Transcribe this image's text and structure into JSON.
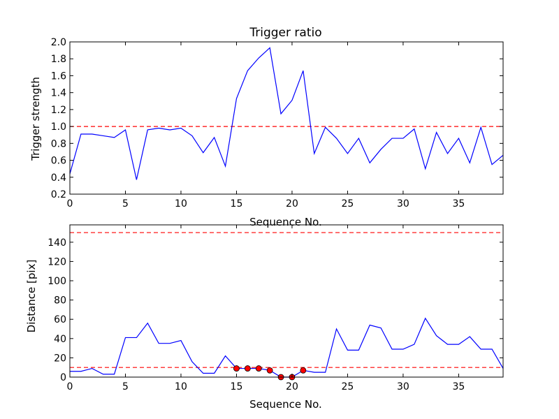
{
  "chart_data": [
    {
      "type": "line",
      "title": "Trigger ratio",
      "xlabel": "Sequence No.",
      "ylabel": "Trigger strength",
      "xlim": [
        0,
        39
      ],
      "ylim": [
        0.2,
        2.0
      ],
      "xticks": [
        0,
        5,
        10,
        15,
        20,
        25,
        30,
        35
      ],
      "yticks": [
        0.2,
        0.4,
        0.6,
        0.8,
        1.0,
        1.2,
        1.4,
        1.6,
        1.8,
        2.0
      ],
      "xtick_labels": [
        "0",
        "5",
        "10",
        "15",
        "20",
        "25",
        "30",
        "35"
      ],
      "ytick_labels": [
        "0.2",
        "0.4",
        "0.6",
        "0.8",
        "1.0",
        "1.2",
        "1.4",
        "1.6",
        "1.8",
        "2.0"
      ],
      "grid": false,
      "series": [
        {
          "color": "#0000ff",
          "x": [
            0,
            1,
            2,
            3,
            4,
            5,
            6,
            7,
            8,
            9,
            10,
            11,
            12,
            13,
            14,
            15,
            16,
            17,
            18,
            19,
            20,
            21,
            22,
            23,
            24,
            25,
            26,
            27,
            28,
            29,
            30,
            31,
            32,
            33,
            34,
            35,
            36,
            37,
            38,
            39
          ],
          "values": [
            0.44,
            0.91,
            0.91,
            0.89,
            0.87,
            0.96,
            0.37,
            0.96,
            0.98,
            0.96,
            0.98,
            0.89,
            0.69,
            0.87,
            0.53,
            1.33,
            1.66,
            1.81,
            1.93,
            1.15,
            1.31,
            1.66,
            0.68,
            0.99,
            0.86,
            0.68,
            0.86,
            0.57,
            0.73,
            0.86,
            0.86,
            0.97,
            0.5,
            0.93,
            0.68,
            0.86,
            0.57,
            0.99,
            0.55,
            0.66
          ]
        }
      ],
      "reference_lines": [
        {
          "y": 1.0,
          "color": "#ff0000",
          "style": "dashed"
        }
      ]
    },
    {
      "type": "line",
      "title": "",
      "xlabel": "Sequence No.",
      "ylabel": "Distance [pix]",
      "xlim": [
        0,
        39
      ],
      "ylim": [
        0,
        158
      ],
      "xticks": [
        0,
        5,
        10,
        15,
        20,
        25,
        30,
        35
      ],
      "yticks": [
        0,
        20,
        40,
        60,
        80,
        100,
        120,
        140
      ],
      "xtick_labels": [
        "0",
        "5",
        "10",
        "15",
        "20",
        "25",
        "30",
        "35"
      ],
      "ytick_labels": [
        "0",
        "20",
        "40",
        "60",
        "80",
        "100",
        "120",
        "140"
      ],
      "grid": false,
      "series": [
        {
          "color": "#0000ff",
          "x": [
            0,
            1,
            2,
            3,
            4,
            5,
            6,
            7,
            8,
            9,
            10,
            11,
            12,
            13,
            14,
            15,
            16,
            17,
            18,
            19,
            20,
            21,
            22,
            23,
            24,
            25,
            26,
            27,
            28,
            29,
            30,
            31,
            32,
            33,
            34,
            35,
            36,
            37,
            38,
            39
          ],
          "values": [
            6,
            6,
            9,
            3,
            3,
            41,
            41,
            56,
            35,
            35,
            38,
            16,
            4,
            4,
            22,
            9,
            9,
            9,
            7,
            0,
            0,
            7,
            5,
            5,
            50,
            28,
            28,
            54,
            51,
            29,
            29,
            34,
            61,
            43,
            34,
            34,
            42,
            29,
            29,
            9
          ]
        }
      ],
      "markers": {
        "color": "#ff0000",
        "x": [
          15,
          16,
          17,
          18,
          19,
          20,
          21
        ],
        "values": [
          9,
          9,
          9,
          7,
          0,
          0,
          7
        ]
      },
      "reference_lines": [
        {
          "y": 150,
          "color": "#ff0000",
          "style": "dashed"
        },
        {
          "y": 10,
          "color": "#ff0000",
          "style": "dashed"
        }
      ]
    }
  ]
}
